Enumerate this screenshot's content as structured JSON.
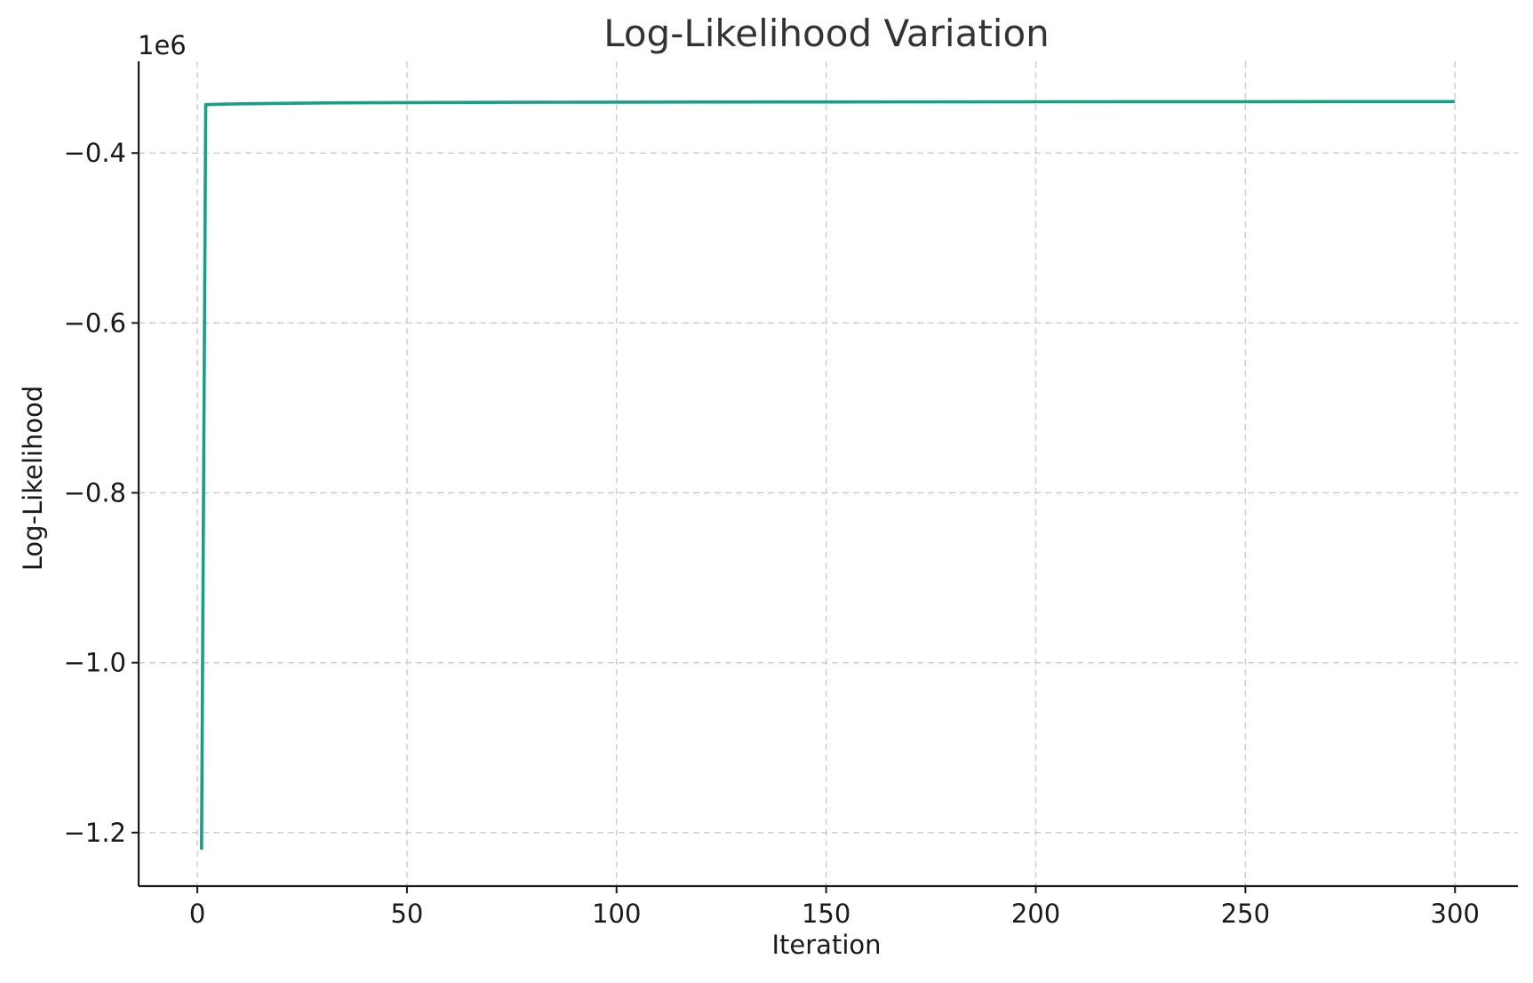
{
  "chart_data": {
    "type": "line",
    "title": "Log-Likelihood Variation",
    "xlabel": "Iteration",
    "ylabel": "Log-Likelihood",
    "y_offset_label": "1e6",
    "xlim": [
      -14,
      315
    ],
    "ylim": [
      -1.263,
      -0.292
    ],
    "x_ticks": [
      0,
      50,
      100,
      150,
      200,
      250,
      300
    ],
    "x_tick_labels": [
      "0",
      "50",
      "100",
      "150",
      "200",
      "250",
      "300"
    ],
    "y_ticks": [
      -1.2,
      -1.0,
      -0.8,
      -0.6,
      -0.4
    ],
    "y_tick_labels": [
      "−1.2",
      "−1.0",
      "−0.8",
      "−0.6",
      "−0.4"
    ],
    "grid": true,
    "legend": "none",
    "series": [
      {
        "color": "#17a085",
        "x": [
          1,
          2,
          5,
          10,
          20,
          30,
          50,
          75,
          100,
          150,
          200,
          250,
          300
        ],
        "values": [
          -1.22,
          -0.343,
          -0.3425,
          -0.342,
          -0.3415,
          -0.341,
          -0.3405,
          -0.3402,
          -0.34,
          -0.3398,
          -0.3396,
          -0.3395,
          -0.3394
        ]
      }
    ]
  }
}
